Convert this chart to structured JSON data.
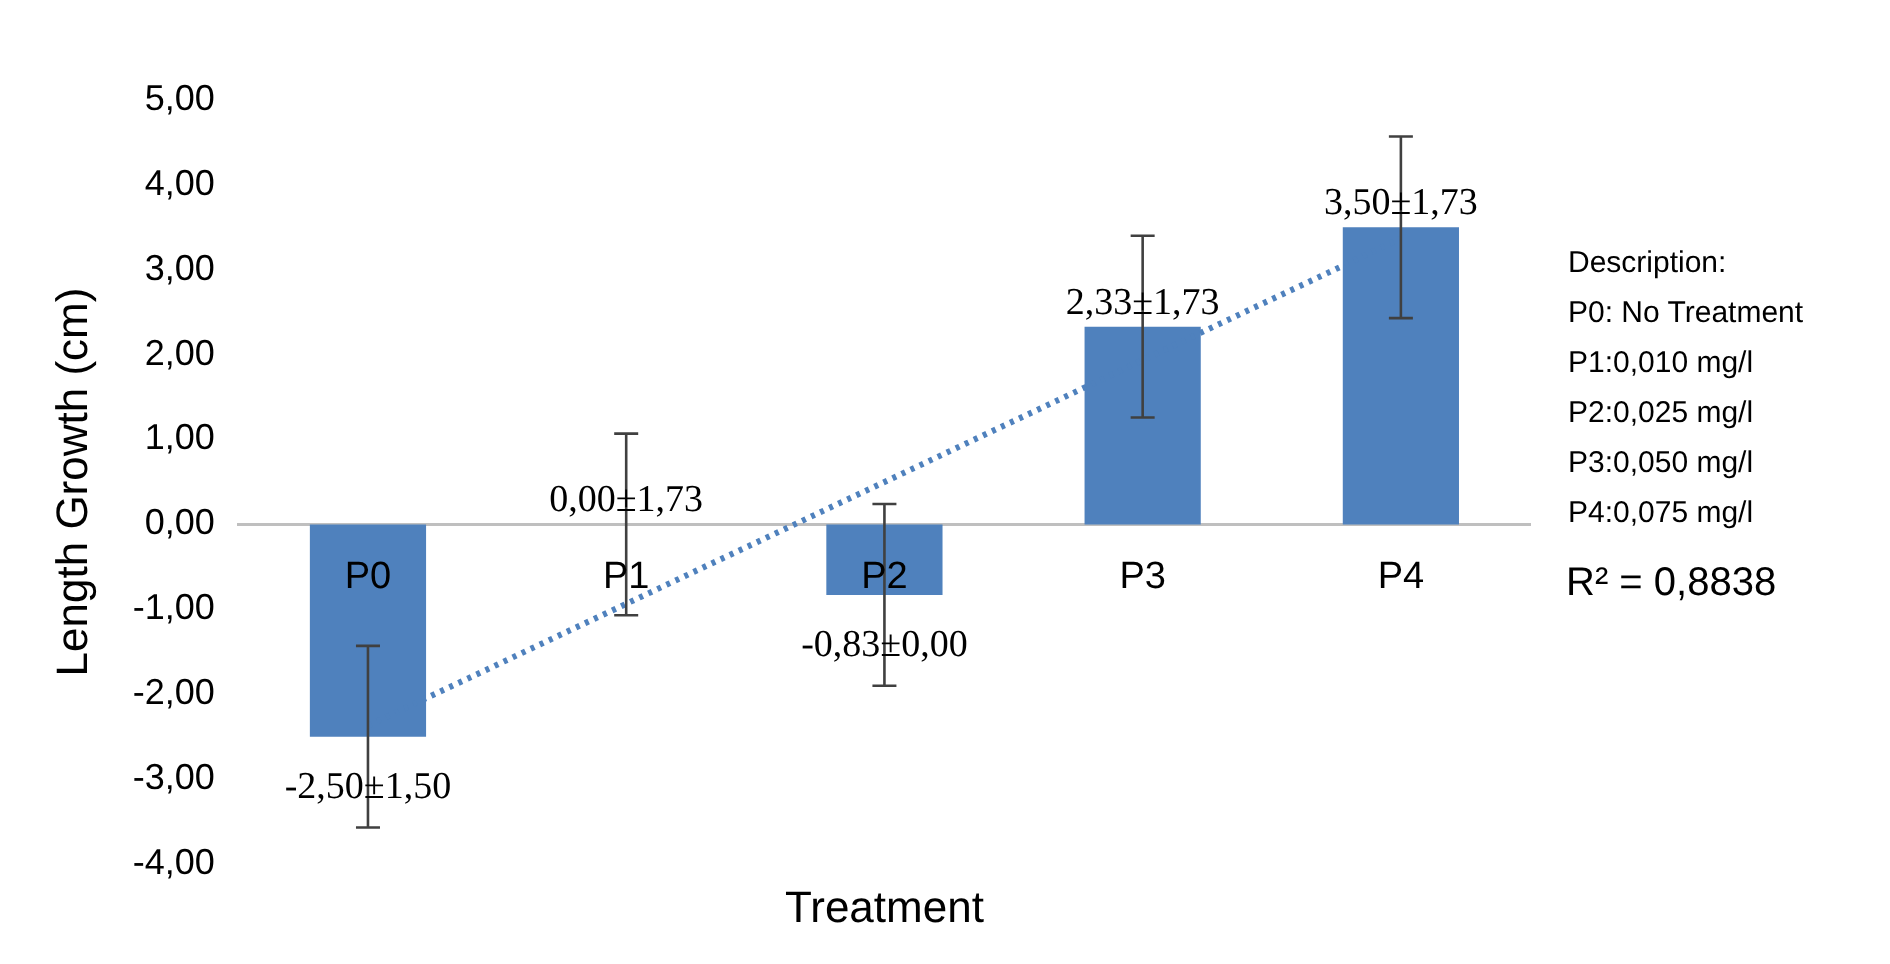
{
  "chart_data": {
    "type": "bar",
    "xlabel": "Treatment",
    "ylabel": "Length Growth (cm)",
    "categories": [
      "P0",
      "P1",
      "P2",
      "P3",
      "P4"
    ],
    "series": [
      {
        "color": "#4f81bd",
        "values": [
          -2.5,
          0,
          -0.83,
          2.33,
          3.5
        ],
        "errors": [
          1.07,
          1.07,
          1.07,
          1.07,
          1.07
        ],
        "value_labels": [
          "-2,50±1,50",
          "0,00±1,73",
          "-0,83±0,00",
          "2,33±1,73",
          "3,50±1,73"
        ]
      },
      {
        "type": "line",
        "color": "#4f81bd",
        "line_style": "dotted",
        "marker": "none",
        "x": [
          "P0",
          "P4"
        ],
        "values": [
          -2.37,
          3.37
        ]
      }
    ],
    "ylim": [
      -4,
      5
    ],
    "yticks": [
      {
        "value": -4,
        "label": "-4,00"
      },
      {
        "value": -3,
        "label": "-3,00"
      },
      {
        "value": -2,
        "label": "-2,00"
      },
      {
        "value": -1,
        "label": "-1,00"
      },
      {
        "value": 0,
        "label": "0,00"
      },
      {
        "value": 1,
        "label": "1,00"
      },
      {
        "value": 2,
        "label": "2,00"
      },
      {
        "value": 3,
        "label": "3,00"
      },
      {
        "value": 4,
        "label": "4,00"
      },
      {
        "value": 5,
        "label": "5,00"
      }
    ],
    "grid": false,
    "legend": false,
    "annotations": [
      "Description:",
      "P0: No Treatment",
      "P1:0,010 mg/l",
      "P2:0,025 mg/l",
      "P3:0,050 mg/l",
      "P4:0,075 mg/l",
      "R² = 0,8838"
    ]
  }
}
